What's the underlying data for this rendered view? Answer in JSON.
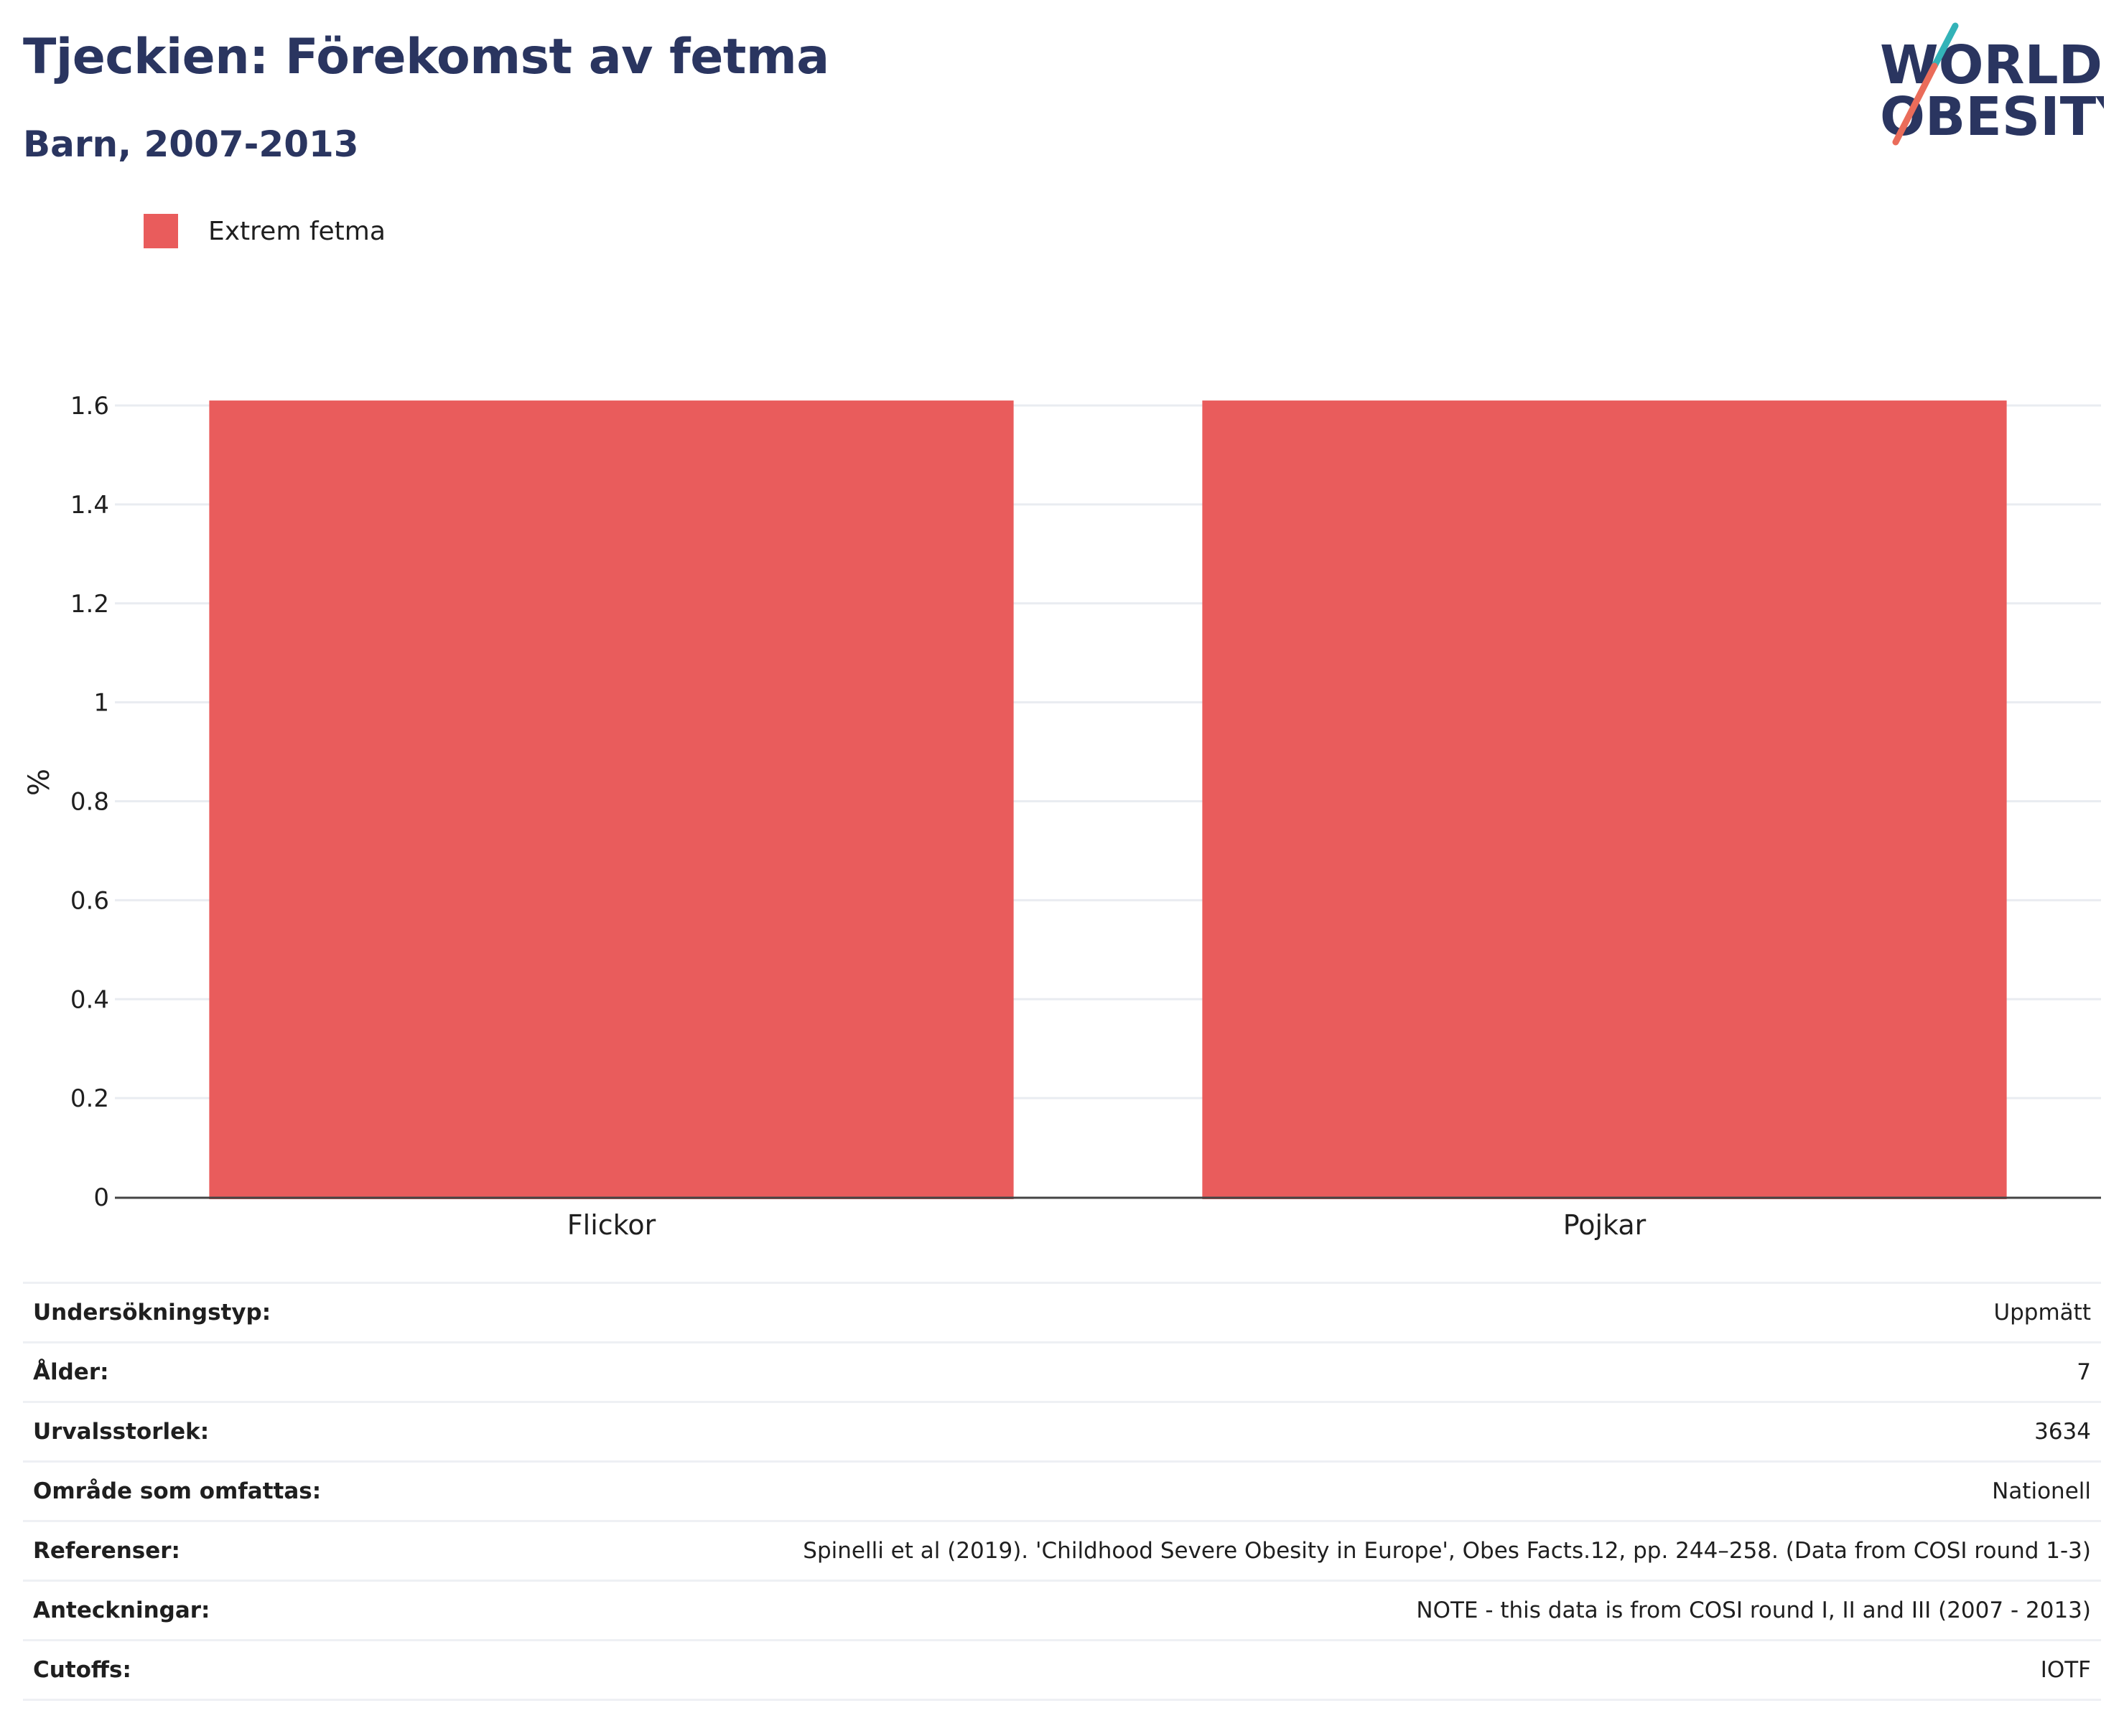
{
  "header": {
    "title": "Tjeckien: Förekomst av fetma",
    "subtitle": "Barn, 2007-2013"
  },
  "logo": {
    "line1": "WORLD",
    "line2": "OBESITY"
  },
  "colors": {
    "bar": "#e95c5c",
    "title": "#2a3560",
    "grid": "#e9ecf1",
    "logo_teal": "#33b3b8",
    "logo_coral": "#ea6c5a"
  },
  "chart_data": {
    "type": "bar",
    "categories": [
      "Flickor",
      "Pojkar"
    ],
    "series": [
      {
        "name": "Extrem fetma",
        "values": [
          1.61,
          1.61
        ]
      }
    ],
    "ylabel": "%",
    "xlabel": "",
    "ylim": [
      0,
      1.6
    ],
    "yticks": [
      "0",
      "0.2",
      "0.4",
      "0.6",
      "0.8",
      "1",
      "1.2",
      "1.4",
      "1.6"
    ],
    "grid": true,
    "legend_position": "top-left"
  },
  "info": [
    {
      "label": "Undersökningstyp:",
      "value": "Uppmätt"
    },
    {
      "label": "Ålder:",
      "value": "7"
    },
    {
      "label": "Urvalsstorlek:",
      "value": "3634"
    },
    {
      "label": "Område som omfattas:",
      "value": "Nationell"
    },
    {
      "label": "Referenser:",
      "value": "Spinelli et al (2019). 'Childhood Severe Obesity in Europe', Obes Facts.12, pp. 244–258. (Data from COSI round 1-3)"
    },
    {
      "label": "Anteckningar:",
      "value": "NOTE - this data is from COSI round I, II and III (2007 - 2013)"
    },
    {
      "label": "Cutoffs:",
      "value": "IOTF"
    }
  ]
}
